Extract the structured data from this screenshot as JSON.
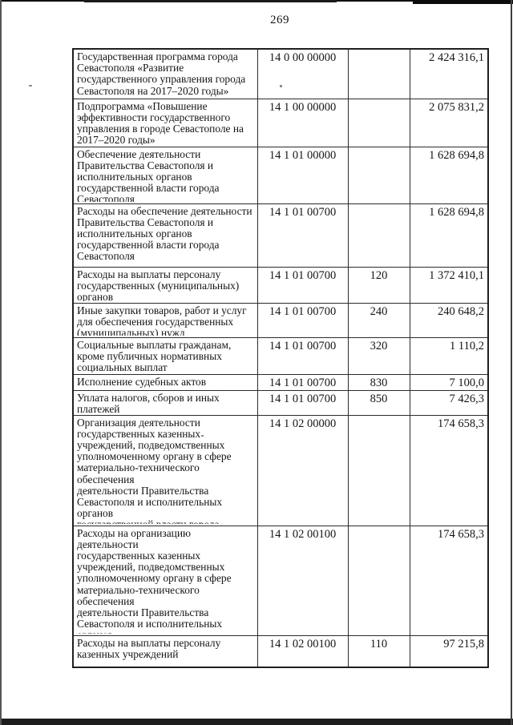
{
  "page_number": "269",
  "table": {
    "rows": [
      {
        "name": "Государственная программа города\nСевастополя «Развитие\nгосударственного управления города\nСевастополя на 2017–2020 годы»",
        "code": "14 0 00 00000",
        "vid": "",
        "amount": "2 424 316,1"
      },
      {
        "name": "Подпрограмма «Повышение\nэффективности государственного\nуправления в городе Севастополе на\n2017–2020 годы»",
        "code": "14 1 00 00000",
        "vid": "",
        "amount": "2 075 831,2"
      },
      {
        "name": "Обеспечение деятельности\nПравительства Севастополя и\nисполнительных органов\nгосударственной власти города\nСевастополя",
        "code": "14 1 01 00000",
        "vid": "",
        "amount": "1 628 694,8"
      },
      {
        "name": "Расходы на обеспечение деятельности\nПравительства Севастополя и\nисполнительных органов\nгосударственной власти города\nСевастополя",
        "code": "14 1 01 00700",
        "vid": "",
        "amount": "1 628 694,8"
      },
      {
        "name": "Расходы на выплаты персоналу\nгосударственных (муниципальных)\nорганов",
        "code": "14 1 01 00700",
        "vid": "120",
        "amount": "1 372 410,1"
      },
      {
        "name": "Иные закупки товаров, работ и услуг\nдля обеспечения государственных\n(муниципальных) нужд",
        "code": "14 1 01 00700",
        "vid": "240",
        "amount": "240 648,2"
      },
      {
        "name": "Социальные выплаты гражданам,\nкроме публичных нормативных\nсоциальных выплат",
        "code": "14 1 01 00700",
        "vid": "320",
        "amount": "1 110,2"
      },
      {
        "name": "Исполнение судебных актов",
        "code": "14 1 01 00700",
        "vid": "830",
        "amount": "7 100,0"
      },
      {
        "name": "Уплата налогов, сборов и иных\nплатежей",
        "code": "14 1 01 00700",
        "vid": "850",
        "amount": "7 426,3"
      },
      {
        "name": "Организация деятельности\nгосударственных казенных\nучреждений, подведомственных\nуполномоченному органу в сфере\nматериально-технического обеспечения\nдеятельности Правительства\nСевастополя и исполнительных органов\nгосударственной власти города\nСевастополя",
        "code": "14 1 02 00000",
        "vid": "",
        "amount": "174 658,3"
      },
      {
        "name": "Расходы на организацию деятельности\nгосударственных казенных\nучреждений, подведомственных\nуполномоченному органу в сфере\nматериально-технического обеспечения\nдеятельности Правительства\nСевастополя и исполнительных органов\nгосударственной власти города\nСевастополя",
        "code": "14 1 02 00100",
        "vid": "",
        "amount": "174 658,3"
      },
      {
        "name": "Расходы на выплаты персоналу\nказенных учреждений",
        "code": "14 1 02 00100",
        "vid": "110",
        "amount": "97 215,8"
      }
    ]
  }
}
